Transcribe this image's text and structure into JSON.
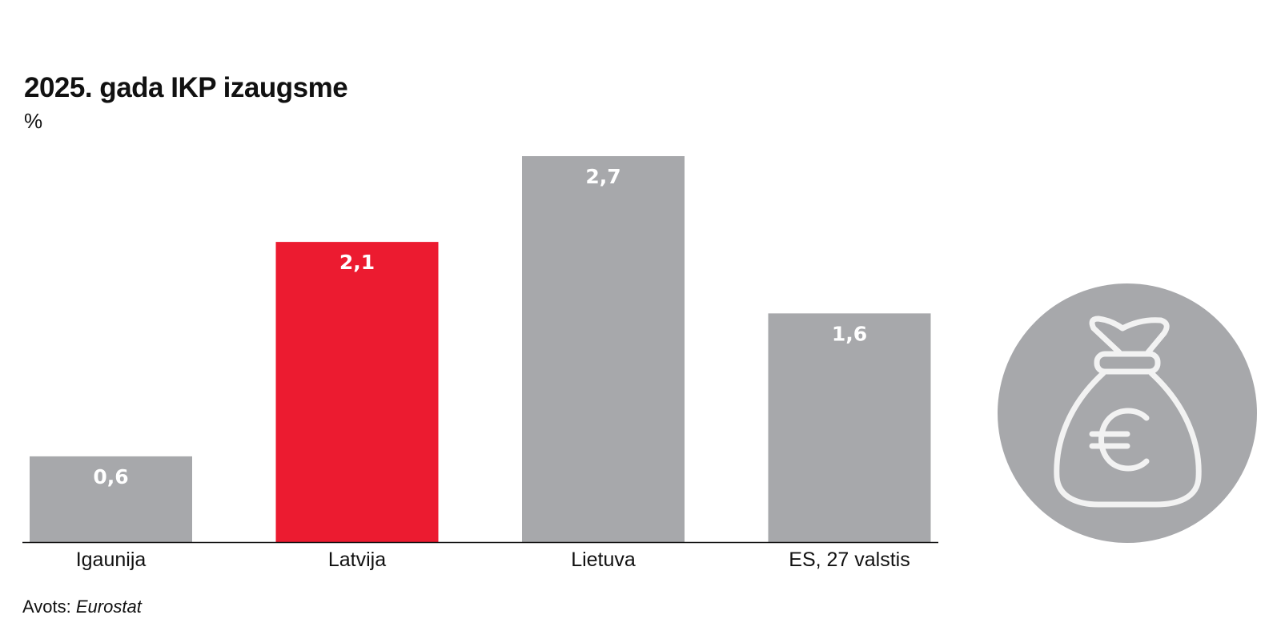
{
  "title": "2025. gada IKP izaugsme",
  "unit": "%",
  "source": {
    "prefix": "Avots:",
    "name": "Eurostat"
  },
  "icon": "euro-money-bag-icon",
  "colors": {
    "bar_default": "#a7a8ab",
    "bar_highlight": "#ec1b30",
    "icon_circle": "#a7a8ab",
    "icon_stroke": "#f2f2f2",
    "axis": "#111111"
  },
  "chart_data": {
    "type": "bar",
    "title": "2025. gada IKP izaugsme",
    "ylabel": "%",
    "xlabel": "",
    "categories": [
      "Igaunija",
      "Latvija",
      "Lietuva",
      "ES, 27 valstis"
    ],
    "values": [
      0.6,
      2.1,
      2.7,
      1.6
    ],
    "value_labels": [
      "0,6",
      "2,1",
      "2,7",
      "1,6"
    ],
    "highlight": "Latvija",
    "ylim": [
      0,
      2.7
    ],
    "grid": false,
    "legend": "none"
  }
}
